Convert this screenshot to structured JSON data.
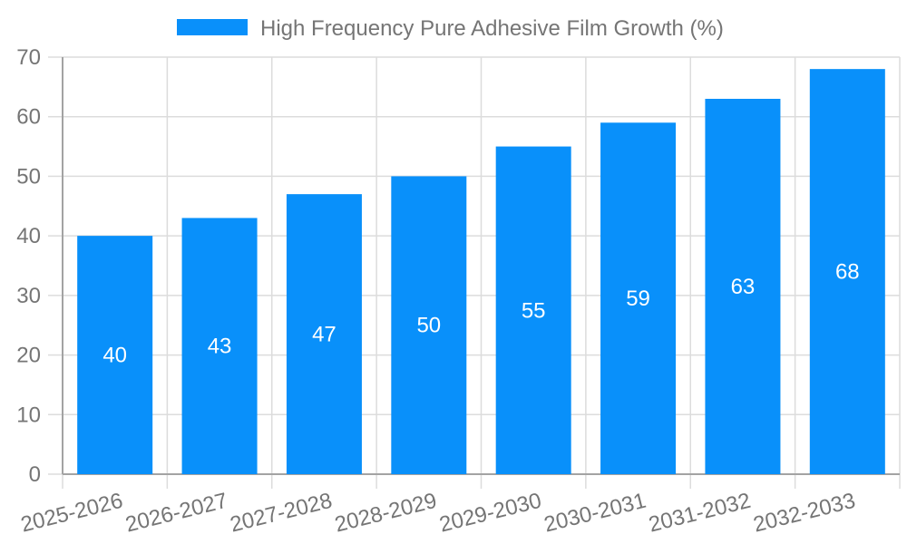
{
  "chart_data": {
    "type": "bar",
    "title": "",
    "legend_label": "High Frequency Pure Adhesive Film Growth (%)",
    "legend_position": "top",
    "categories": [
      "2025-2026",
      "2026-2027",
      "2027-2028",
      "2028-2029",
      "2029-2030",
      "2030-2031",
      "2031-2032",
      "2032-2033"
    ],
    "values": [
      40,
      43,
      47,
      50,
      55,
      59,
      63,
      68
    ],
    "xlabel": "",
    "ylabel": "",
    "ylim": [
      0,
      70
    ],
    "y_ticks": [
      0,
      10,
      20,
      30,
      40,
      50,
      60,
      70
    ],
    "grid": "on",
    "bar_color": "#0990FA",
    "bar_value_label_color": "#ffffff",
    "axis_text_color": "#757575",
    "grid_color": "#dcdcdc",
    "axis_line_color": "#a3a3a3"
  }
}
